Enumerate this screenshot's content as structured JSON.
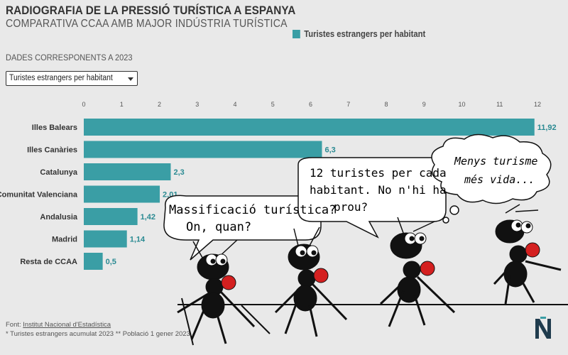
{
  "header": {
    "title": "RADIOGRAFIA DE LA PRESSIÓ TURÍSTICA A ESPANYA",
    "subtitle": "COMPARATIVA CCAA AMB MAJOR INDÚSTRIA TURÍSTICA",
    "note": "DADES CORRESPONENTS A 2023",
    "legend_label": "Turistes estrangers per habitant"
  },
  "dropdown": {
    "selected": "Turistes estrangers per habitant"
  },
  "colors": {
    "bar": "#3a9ea5",
    "background": "#e9e9e9"
  },
  "chart_data": {
    "type": "bar",
    "orientation": "horizontal",
    "categories": [
      "Illes Balears",
      "Illes Canàries",
      "Catalunya",
      "Comunitat Valenciana",
      "Andalusia",
      "Madrid",
      "Resta de CCAA"
    ],
    "values": [
      11.92,
      6.3,
      2.3,
      2.01,
      1.42,
      1.14,
      0.5
    ],
    "value_labels": [
      "11,92",
      "6,3",
      "2,3",
      "2,01",
      "1,42",
      "1,14",
      "0,5"
    ],
    "xticks": [
      "0",
      "1",
      "2",
      "3",
      "4",
      "5",
      "6",
      "7",
      "8",
      "9",
      "10",
      "11",
      "12"
    ],
    "xlim": [
      0,
      12
    ],
    "series": [
      {
        "name": "Turistes estrangers per habitant",
        "values": [
          11.92,
          6.3,
          2.3,
          2.01,
          1.42,
          1.14,
          0.5
        ]
      }
    ],
    "legend_placement": "top"
  },
  "footer": {
    "source_prefix": "Font: ",
    "source_link": "Institut Nacional d'Estadística",
    "footnote": "* Turistes estrangers acumulat 2023 ** Població 1 gener 2023"
  },
  "logo": {
    "letter": "N"
  },
  "cartoon": {
    "bubble1": [
      "Massificació turística?",
      "On, quan?"
    ],
    "bubble2": [
      "12 turistes per cada",
      "habitant. No n'hi ha",
      "prou?"
    ],
    "bubble3": [
      "Menys turisme",
      "més vida..."
    ]
  }
}
